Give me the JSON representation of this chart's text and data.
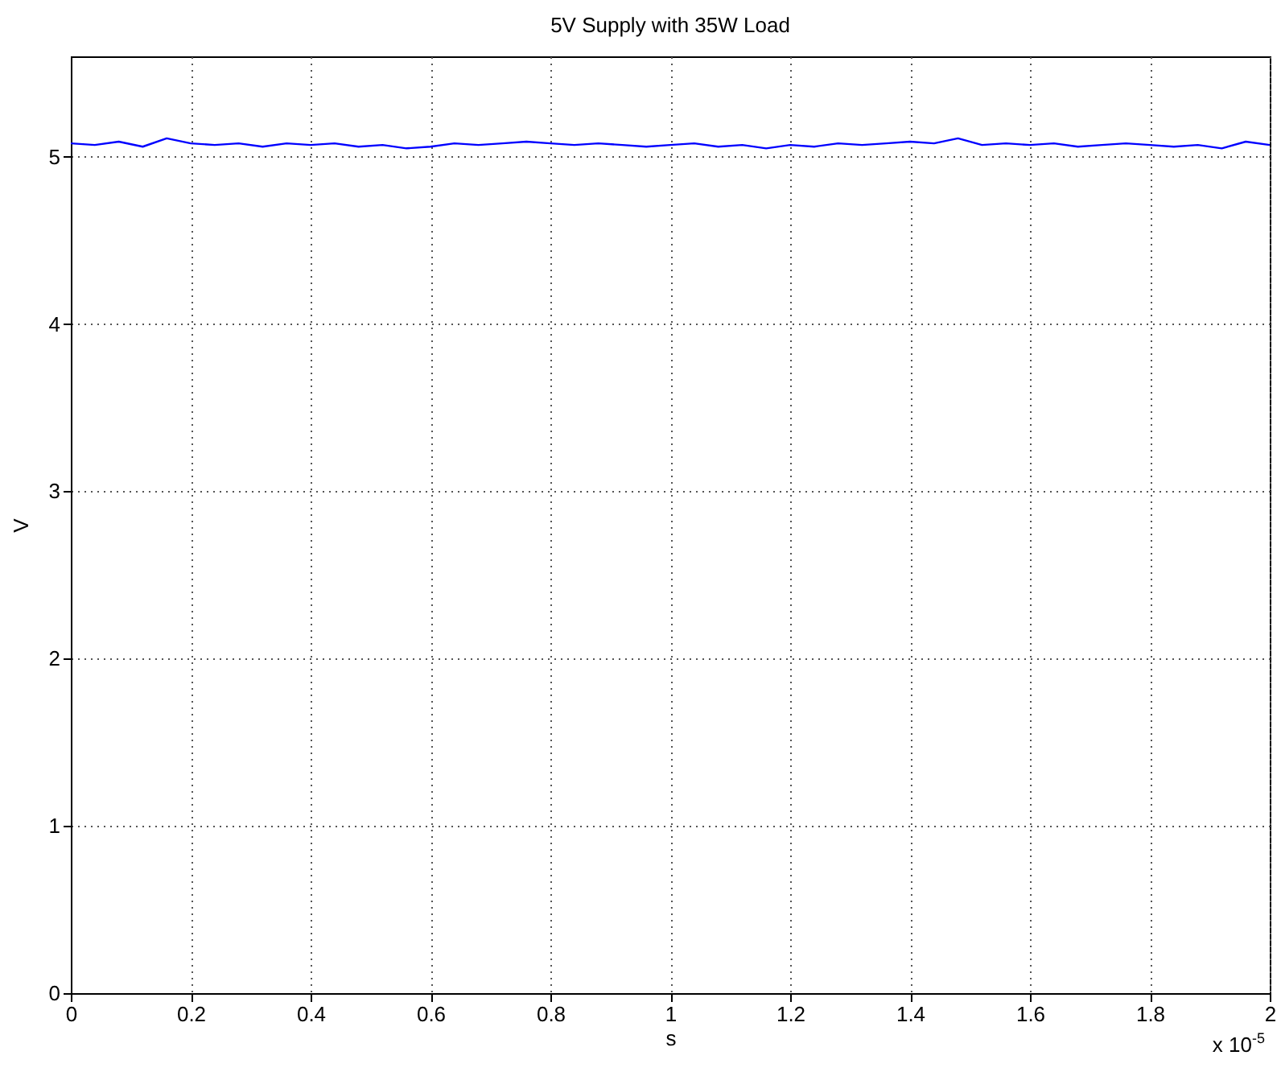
{
  "chart_data": {
    "type": "line",
    "title": "5V Supply with 35W Load",
    "xlabel": "s",
    "ylabel": "V",
    "x": [
      0,
      0.04,
      0.08,
      0.12,
      0.16,
      0.2,
      0.24,
      0.28,
      0.32,
      0.36,
      0.4,
      0.44,
      0.48,
      0.52,
      0.56,
      0.6,
      0.64,
      0.68,
      0.72,
      0.76,
      0.8,
      0.84,
      0.88,
      0.92,
      0.96,
      1,
      1.04,
      1.08,
      1.12,
      1.16,
      1.2,
      1.24,
      1.28,
      1.32,
      1.36,
      1.4,
      1.44,
      1.48,
      1.52,
      1.56,
      1.6,
      1.64,
      1.68,
      1.72,
      1.76,
      1.8,
      1.84,
      1.88,
      1.92,
      1.96,
      2
    ],
    "series": [
      {
        "color": "#0000ff",
        "values": [
          5.08,
          5.07,
          5.09,
          5.06,
          5.11,
          5.08,
          5.07,
          5.08,
          5.06,
          5.08,
          5.07,
          5.08,
          5.06,
          5.07,
          5.05,
          5.06,
          5.08,
          5.07,
          5.08,
          5.09,
          5.08,
          5.07,
          5.08,
          5.07,
          5.06,
          5.07,
          5.08,
          5.06,
          5.07,
          5.05,
          5.07,
          5.06,
          5.08,
          5.07,
          5.08,
          5.09,
          5.08,
          5.11,
          5.07,
          5.08,
          5.07,
          5.08,
          5.06,
          5.07,
          5.08,
          5.07,
          5.06,
          5.07,
          5.05,
          5.09,
          5.07
        ]
      }
    ],
    "xlim": [
      0,
      2
    ],
    "xticks": [
      0,
      0.2,
      0.4,
      0.6,
      0.8,
      1,
      1.2,
      1.4,
      1.6,
      1.8,
      2
    ],
    "ylim": [
      0,
      5.6
    ],
    "yticks": [
      0,
      1,
      2,
      3,
      4,
      5
    ],
    "grid": true,
    "line_style": "solid",
    "marker": "none",
    "annotations": [
      "x 10$^{-5}$"
    ]
  }
}
